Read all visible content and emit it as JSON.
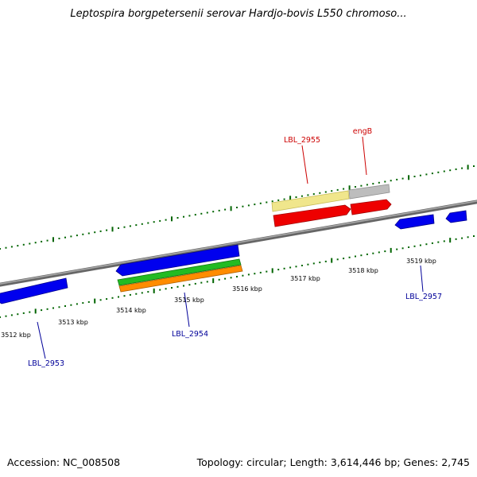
{
  "header": {
    "title": "Leptospira borgpetersenii serovar Hardjo-bovis L550 chromoso..."
  },
  "footer": {
    "accession": "Accession: NC_008508",
    "topology": "Topology: circular; Length: 3,614,446 bp; Genes: 2,745"
  },
  "ticks": [
    "3512 kbp",
    "3513 kbp",
    "3514 kbp",
    "3515 kbp",
    "3516 kbp",
    "3517 kbp",
    "3518 kbp",
    "3519 kbp"
  ],
  "gene_labels": {
    "lbl2955": "LBL_2955",
    "engB": "engB",
    "lbl2953": "LBL_2953",
    "lbl2954": "LBL_2954",
    "lbl2957": "LBL_2957"
  },
  "colors": {
    "forward_label": "#cc0000",
    "reverse_label": "#000099",
    "blue": "#0000ee",
    "red": "#ee0000",
    "yellow": "#f0e68c",
    "gray": "#bdbdbd",
    "green": "#22bb22",
    "orange": "#ff8c00",
    "tick": "#006400"
  }
}
